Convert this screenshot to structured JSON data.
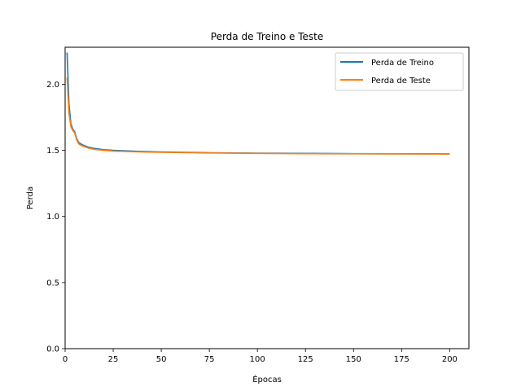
{
  "chart_data": {
    "type": "line",
    "title": "Perda de Treino e Teste",
    "xlabel": "Épocas",
    "ylabel": "Perda",
    "xlim": [
      0,
      210
    ],
    "ylim": [
      0.0,
      2.28
    ],
    "xticks": [
      0,
      25,
      50,
      75,
      100,
      125,
      150,
      175,
      200
    ],
    "yticks": [
      0.0,
      0.5,
      1.0,
      1.5,
      2.0
    ],
    "ytick_labels": [
      "0.0",
      "0.5",
      "1.0",
      "1.5",
      "2.0"
    ],
    "grid": false,
    "legend_position": "top-right",
    "x": [
      1,
      2,
      3,
      4,
      5,
      6,
      7,
      8,
      10,
      12,
      15,
      20,
      25,
      30,
      40,
      50,
      75,
      100,
      125,
      150,
      175,
      200
    ],
    "series": [
      {
        "name": "Perda de Treino",
        "color": "#1f77b4",
        "values": [
          2.24,
          1.85,
          1.7,
          1.66,
          1.64,
          1.59,
          1.56,
          1.55,
          1.535,
          1.525,
          1.515,
          1.505,
          1.5,
          1.497,
          1.492,
          1.488,
          1.482,
          1.479,
          1.477,
          1.475,
          1.474,
          1.473
        ]
      },
      {
        "name": "Perda de Teste",
        "color": "#ff7f0e",
        "values": [
          2.05,
          1.78,
          1.68,
          1.65,
          1.63,
          1.58,
          1.55,
          1.54,
          1.528,
          1.518,
          1.508,
          1.5,
          1.495,
          1.492,
          1.488,
          1.485,
          1.48,
          1.477,
          1.475,
          1.474,
          1.473,
          1.472
        ]
      }
    ]
  }
}
